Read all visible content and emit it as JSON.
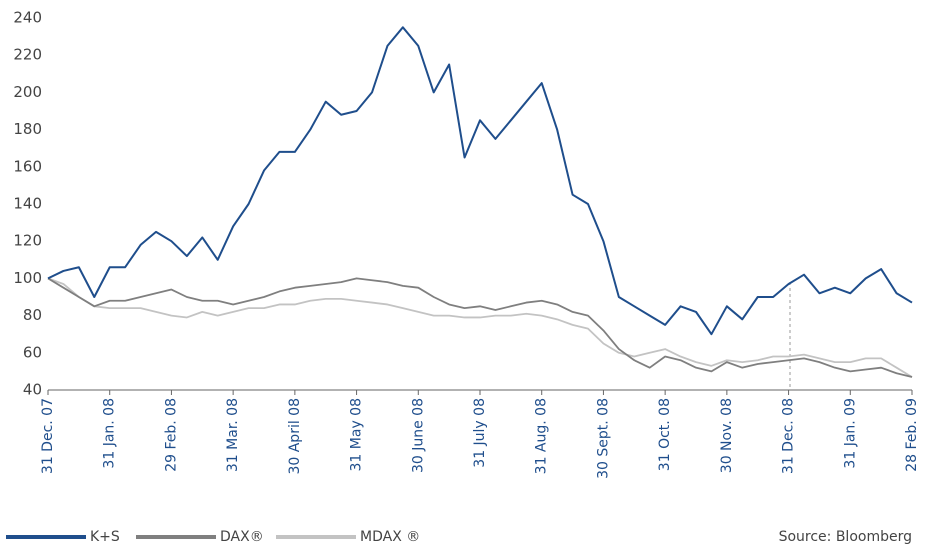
{
  "chart_data": {
    "type": "line",
    "x": [
      0,
      0.25,
      0.5,
      0.75,
      1,
      1.25,
      1.5,
      1.75,
      2,
      2.25,
      2.5,
      2.75,
      3,
      3.25,
      3.5,
      3.75,
      4,
      4.25,
      4.5,
      4.75,
      5,
      5.25,
      5.5,
      5.75,
      6,
      6.25,
      6.5,
      6.75,
      7,
      7.25,
      7.5,
      7.75,
      8,
      8.25,
      8.5,
      8.75,
      9,
      9.25,
      9.5,
      9.75,
      10,
      10.25,
      10.5,
      10.75,
      11,
      11.25,
      11.5,
      11.75,
      12,
      12.25,
      12.5,
      12.75,
      13,
      13.25,
      13.5,
      13.75,
      14
    ],
    "series": [
      {
        "name": "K+S",
        "color": "#1f4e8c",
        "values": [
          100,
          104,
          106,
          90,
          106,
          106,
          118,
          125,
          120,
          112,
          122,
          110,
          128,
          140,
          158,
          168,
          168,
          180,
          195,
          188,
          190,
          200,
          225,
          235,
          225,
          200,
          215,
          165,
          185,
          175,
          185,
          195,
          205,
          180,
          145,
          140,
          120,
          90,
          85,
          80,
          75,
          85,
          82,
          70,
          85,
          78,
          90,
          90,
          97,
          102,
          92,
          95,
          92,
          100,
          105,
          92,
          87
        ]
      },
      {
        "name": "DAX®",
        "color": "#7f7f7f",
        "values": [
          100,
          95,
          90,
          85,
          88,
          88,
          90,
          92,
          94,
          90,
          88,
          88,
          86,
          88,
          90,
          93,
          95,
          96,
          97,
          98,
          100,
          99,
          98,
          96,
          95,
          90,
          86,
          84,
          85,
          83,
          85,
          87,
          88,
          86,
          82,
          80,
          72,
          62,
          56,
          52,
          58,
          56,
          52,
          50,
          55,
          52,
          54,
          55,
          56,
          57,
          55,
          52,
          50,
          51,
          52,
          49,
          47
        ]
      },
      {
        "name": "MDAX ®",
        "color": "#c3c3c3",
        "values": [
          100,
          97,
          90,
          85,
          84,
          84,
          84,
          82,
          80,
          79,
          82,
          80,
          82,
          84,
          84,
          86,
          86,
          88,
          89,
          89,
          88,
          87,
          86,
          84,
          82,
          80,
          80,
          79,
          79,
          80,
          80,
          81,
          80,
          78,
          75,
          73,
          65,
          60,
          58,
          60,
          62,
          58,
          55,
          53,
          56,
          55,
          56,
          58,
          58,
          59,
          57,
          55,
          55,
          57,
          57,
          52,
          47
        ]
      }
    ],
    "xlim": [
      0,
      14
    ],
    "xticks": [
      {
        "value": 0,
        "label": "31 Dec. 07"
      },
      {
        "value": 1,
        "label": "31 Jan. 08"
      },
      {
        "value": 2,
        "label": "29 Feb. 08"
      },
      {
        "value": 3,
        "label": "31 Mar. 08"
      },
      {
        "value": 4,
        "label": "30 April 08"
      },
      {
        "value": 5,
        "label": "31 May 08"
      },
      {
        "value": 6,
        "label": "30 June 08"
      },
      {
        "value": 7,
        "label": "31 July 08"
      },
      {
        "value": 8,
        "label": "31 Aug. 08"
      },
      {
        "value": 9,
        "label": "30 Sept. 08"
      },
      {
        "value": 10,
        "label": "31 Oct. 08"
      },
      {
        "value": 11,
        "label": "30 Nov. 08"
      },
      {
        "value": 12,
        "label": "31 Dec. 08"
      },
      {
        "value": 13,
        "label": "31 Jan. 09"
      },
      {
        "value": 14,
        "label": "28 Feb. 09"
      }
    ],
    "ylim": [
      40,
      240
    ],
    "yticks": [
      40,
      60,
      80,
      100,
      120,
      140,
      160,
      180,
      200,
      220,
      240
    ],
    "grid": false,
    "source": "Source: Bloomberg"
  }
}
